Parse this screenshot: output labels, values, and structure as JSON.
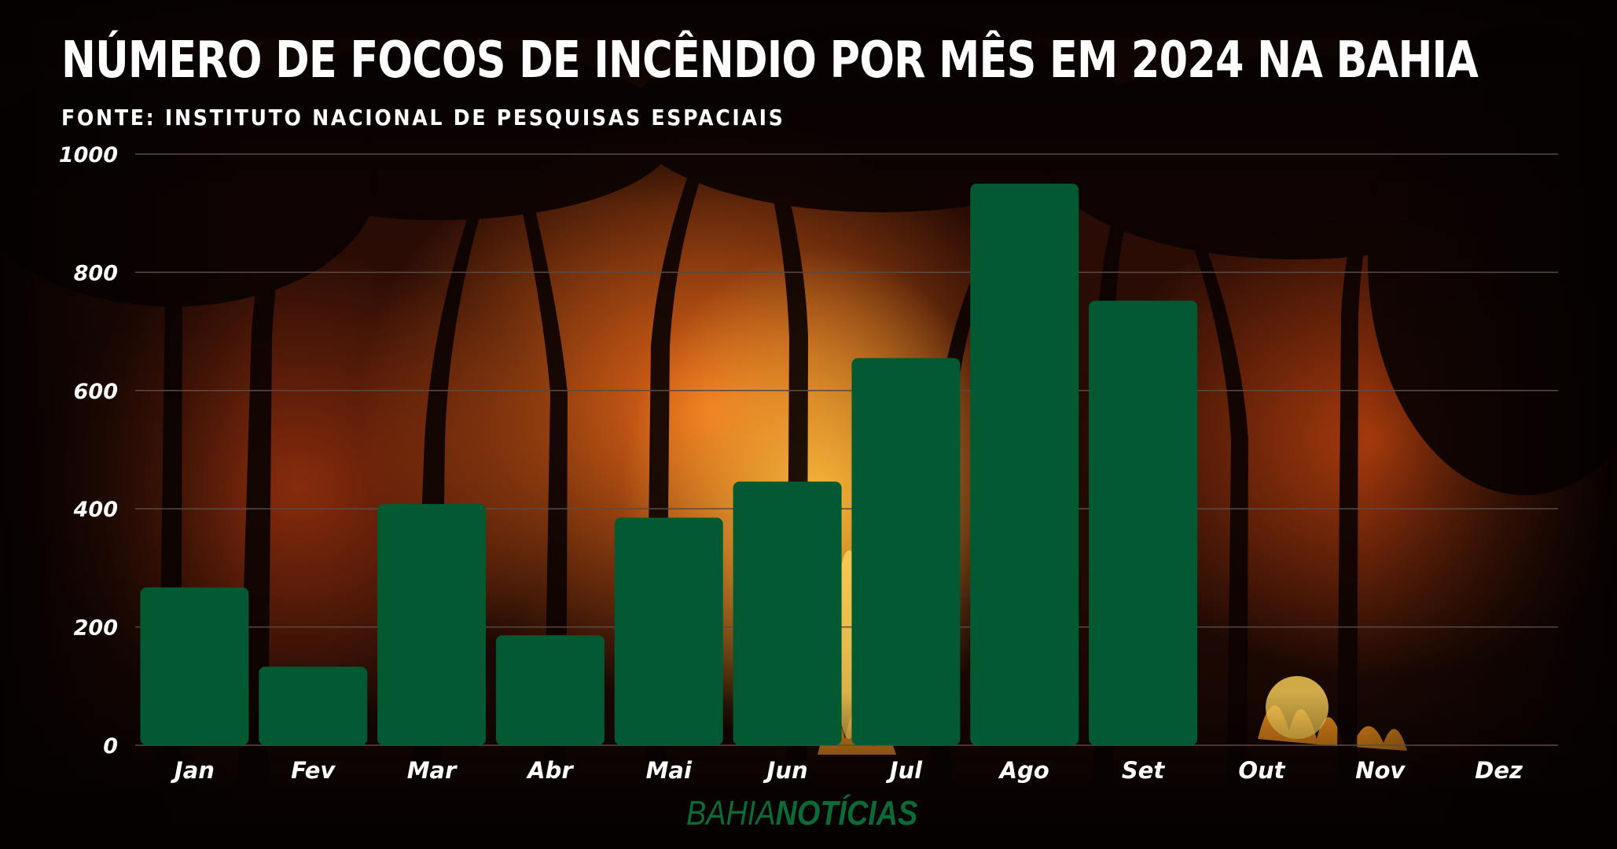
{
  "header": {
    "title": "NÚMERO DE FOCOS DE INCÊNDIO POR MÊS EM 2024 NA BAHIA",
    "subtitle": "FONTE: INSTITUTO NACIONAL DE PESQUISAS ESPACIAIS"
  },
  "logo": {
    "part1": "BAHIA",
    "part2": "NOTÍCIAS"
  },
  "colors": {
    "bar": "#035a32",
    "text": "#ffffff",
    "grid": "#5a4a44",
    "logo": "#0b6b36"
  },
  "background": {
    "scene": "forest-fire-night"
  },
  "chart_data": {
    "type": "bar",
    "title": "NÚMERO DE FOCOS DE INCÊNDIO POR MÊS EM 2024 NA BAHIA",
    "categories": [
      "Jan",
      "Fev",
      "Mar",
      "Abr",
      "Mai",
      "Jun",
      "Jul",
      "Ago",
      "Set",
      "Out",
      "Nov",
      "Dez"
    ],
    "values": [
      267,
      133,
      408,
      186,
      385,
      446,
      655,
      950,
      752,
      null,
      null,
      null
    ],
    "ylim": [
      0,
      1000
    ],
    "yticks": [
      0,
      200,
      400,
      600,
      800,
      1000
    ],
    "xlabel": "",
    "ylabel": "",
    "grid": true,
    "legend": "none"
  }
}
